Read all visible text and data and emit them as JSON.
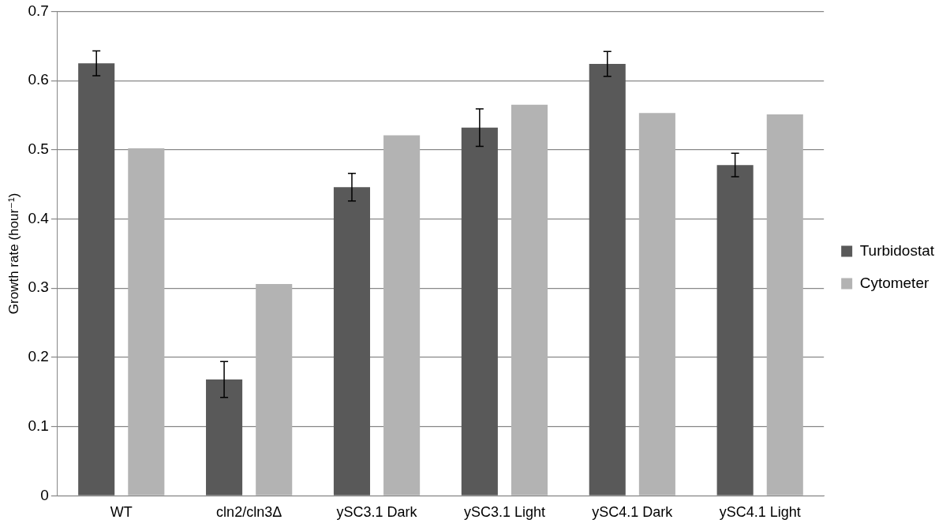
{
  "chart_data": {
    "type": "bar",
    "ylabel": "Growth rate (hour⁻¹)",
    "categories": [
      "WT",
      "cln2/cln3Δ",
      "ySC3.1 Dark",
      "ySC3.1 Light",
      "ySC4.1 Dark",
      "ySC4.1 Light"
    ],
    "series": [
      {
        "name": "Turbidostat",
        "color": "#595959",
        "values": [
          0.625,
          0.168,
          0.446,
          0.532,
          0.624,
          0.478
        ],
        "errors": [
          0.018,
          0.026,
          0.02,
          0.027,
          0.018,
          0.017
        ]
      },
      {
        "name": "Cytometer",
        "color": "#b3b3b3",
        "values": [
          0.502,
          0.306,
          0.521,
          0.565,
          0.553,
          0.551
        ]
      }
    ],
    "ylim": [
      0,
      0.7
    ],
    "yticks": [
      0,
      0.1,
      0.2,
      0.3,
      0.4,
      0.5,
      0.6,
      0.7
    ],
    "grid": "y",
    "legend": "right"
  }
}
